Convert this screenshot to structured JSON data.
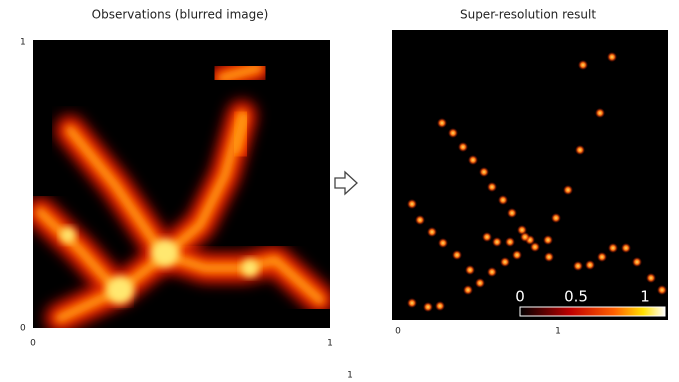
{
  "left_panel": {
    "title": "Observations (blurred image)",
    "y_ticks": [
      "1",
      "0"
    ],
    "x_ticks": [
      "0",
      "1"
    ]
  },
  "right_panel": {
    "title": "Super-resolution result",
    "x_ticks": [
      "0",
      "1"
    ],
    "colorbar": {
      "ticks": [
        "0",
        "0.5",
        "1"
      ]
    }
  },
  "footer": {
    "label": "1"
  }
}
